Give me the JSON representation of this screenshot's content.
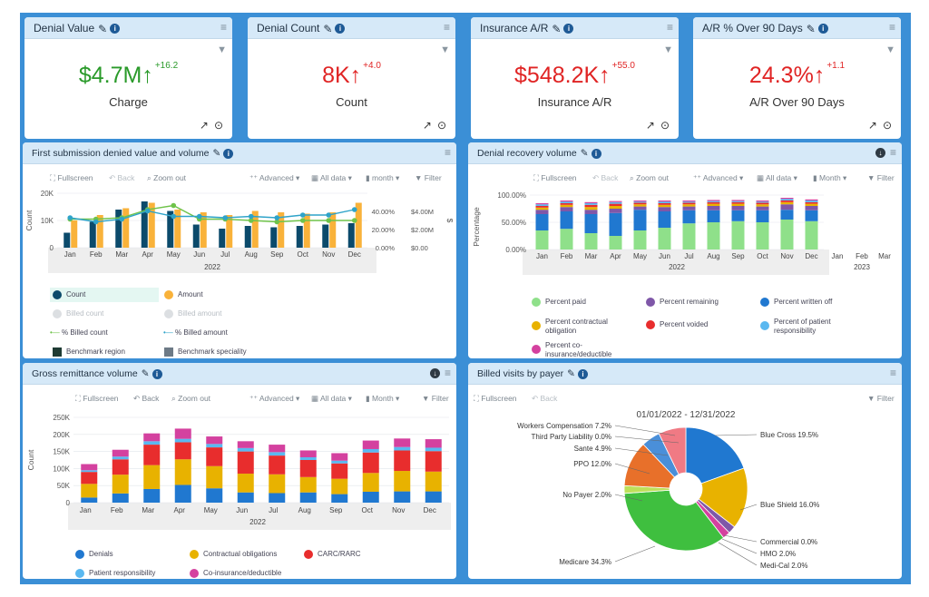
{
  "colors": {
    "panel_head": "#d6e9f8",
    "green": "#2a9a2a",
    "red": "#e02424",
    "navy": "#0b4a6b",
    "orange": "#f9b23a",
    "teal": "#2ea3c9",
    "lime": "#6fc34a"
  },
  "kpis": [
    {
      "title": "Denial Value",
      "value": "$4.7M",
      "arrow": "↑",
      "delta": "+16.2",
      "label": "Charge",
      "color": "#2a9a2a"
    },
    {
      "title": "Denial Count",
      "value": "8K",
      "arrow": "↑",
      "delta": "+4.0",
      "label": "Count",
      "color": "#e02424"
    },
    {
      "title": "Insurance A/R",
      "value": "$548.2K",
      "arrow": "↑",
      "delta": "+55.0",
      "label": "Insurance A/R",
      "color": "#e02424"
    },
    {
      "title": "A/R % Over 90 Days",
      "value": "24.3%",
      "arrow": "↑",
      "delta": "+1.1",
      "label": "A/R Over 90 Days",
      "color": "#e02424"
    }
  ],
  "toolbar": {
    "fullscreen": "Fullscreen",
    "back": "Back",
    "zoom_out": "Zoom out",
    "advanced": "Advanced",
    "all_data": "All data",
    "month_lower": "month",
    "month": "Month",
    "filter": "Filter"
  },
  "months": [
    "Jan",
    "Feb",
    "Mar",
    "Apr",
    "May",
    "Jun",
    "Jul",
    "Aug",
    "Sep",
    "Oct",
    "Nov",
    "Dec"
  ],
  "p1": {
    "title": "First submission denied value and volume",
    "year": "2022",
    "left_axis_title": "Count",
    "right_axis_title": "$",
    "left_ticks": [
      "20K",
      "10K",
      "0"
    ],
    "mid_ticks": [
      "40.00%",
      "20.00%",
      "0.00%"
    ],
    "right_ticks": [
      "$4.00M",
      "$2.00M",
      "$0.00"
    ],
    "legend": {
      "count": "Count",
      "amount": "Amount",
      "billed_count": "Billed count",
      "billed_amount": "Billed amount",
      "pct_billed_count": "% Billed count",
      "pct_billed_amount": "% Billed amount",
      "benchmark_region": "Benchmark region",
      "benchmark_speciality": "Benchmark speciality"
    }
  },
  "p2": {
    "title": "Denial recovery volume",
    "year": "2022",
    "year2": "2023",
    "axis_title": "Percentage",
    "ticks": [
      "100.00%",
      "50.00%",
      "0.00%"
    ],
    "legend": {
      "paid": "Percent paid",
      "remaining": "Percent remaining",
      "written_off": "Percent written off",
      "contractual": "Percent contractual obligation",
      "voided": "Percent voided",
      "patient": "Percent of patient responsibility",
      "coins": "Percent co-insurance/deductible"
    }
  },
  "p3": {
    "title": "Gross remittance volume",
    "year": "2022",
    "axis_title": "Count",
    "ticks": [
      "250K",
      "200K",
      "150K",
      "100K",
      "50K",
      "0"
    ],
    "legend": {
      "denials": "Denials",
      "contractual": "Contractual obligations",
      "carc": "CARC/RARC",
      "patient": "Patient responsibility",
      "coins": "Co-insurance/deductible"
    }
  },
  "p4": {
    "title": "Billed visits by payer",
    "date_range": "01/01/2022 - 12/31/2022",
    "labels": {
      "workers": "Workers Compensation 7.2%",
      "third": "Third Party Liability 0.0%",
      "sante": "Sante 4.9%",
      "ppo": "PPO 12.0%",
      "nopayer": "No Payer 2.0%",
      "medicare": "Medicare 34.3%",
      "bluecross": "Blue Cross 19.5%",
      "blueshield": "Blue Shield 16.0%",
      "commercial": "Commercial 0.0%",
      "hmo": "HMO 2.0%",
      "medical": "Medi-Cal 2.0%"
    }
  },
  "chart_data": [
    {
      "type": "bar",
      "title": "First submission denied value and volume",
      "xlabel": "2022",
      "ylabel": "Count",
      "categories": [
        "Jan",
        "Feb",
        "Mar",
        "Apr",
        "May",
        "Jun",
        "Jul",
        "Aug",
        "Sep",
        "Oct",
        "Nov",
        "Dec"
      ],
      "series": [
        {
          "name": "Count",
          "values": [
            5500,
            9500,
            14000,
            17000,
            13500,
            8500,
            7000,
            8000,
            7500,
            8000,
            8500,
            9000
          ]
        },
        {
          "name": "Amount",
          "values": [
            2.0,
            2.4,
            2.9,
            3.3,
            2.8,
            2.6,
            2.4,
            2.7,
            2.6,
            2.5,
            2.6,
            3.3
          ]
        },
        {
          "name": "% Billed count",
          "values": [
            21,
            21,
            22,
            28,
            31,
            21,
            21,
            20,
            19,
            20,
            20,
            20
          ]
        },
        {
          "name": "% Billed amount",
          "values": [
            22,
            19,
            21,
            27,
            23,
            23,
            22,
            23,
            22,
            24,
            24,
            28
          ]
        }
      ],
      "ylim": [
        0,
        20000
      ],
      "y2lim": [
        0,
        4.0
      ],
      "y3lim": [
        0,
        40
      ]
    },
    {
      "type": "bar",
      "title": "Denial recovery volume",
      "xlabel": "2022",
      "ylabel": "Percentage",
      "categories": [
        "Jan",
        "Feb",
        "Mar",
        "Apr",
        "May",
        "Jun",
        "Jul",
        "Aug",
        "Sep",
        "Oct",
        "Nov",
        "Dec"
      ],
      "series": [
        {
          "name": "Percent paid",
          "values": [
            35,
            38,
            30,
            25,
            35,
            40,
            48,
            50,
            52,
            50,
            55,
            52
          ]
        },
        {
          "name": "Percent written off",
          "values": [
            30,
            32,
            35,
            42,
            38,
            30,
            24,
            22,
            20,
            22,
            18,
            20
          ]
        },
        {
          "name": "Percent remaining",
          "values": [
            8,
            8,
            8,
            8,
            6,
            8,
            7,
            8,
            8,
            7,
            10,
            8
          ]
        },
        {
          "name": "Percent contractual obligation",
          "values": [
            4,
            4,
            5,
            5,
            4,
            4,
            4,
            4,
            4,
            4,
            4,
            4
          ]
        },
        {
          "name": "Percent voided",
          "values": [
            3,
            3,
            4,
            4,
            3,
            3,
            3,
            3,
            3,
            3,
            3,
            3
          ]
        },
        {
          "name": "Percent of patient responsibility",
          "values": [
            3,
            3,
            3,
            3,
            2,
            3,
            2,
            2,
            2,
            2,
            3,
            3
          ]
        },
        {
          "name": "Percent co-insurance/deductible",
          "values": [
            2,
            2,
            2,
            2,
            2,
            2,
            2,
            2,
            2,
            2,
            2,
            2
          ]
        }
      ],
      "ylim": [
        0,
        100
      ]
    },
    {
      "type": "bar",
      "title": "Gross remittance volume",
      "xlabel": "2022",
      "ylabel": "Count",
      "categories": [
        "Jan",
        "Feb",
        "Mar",
        "Apr",
        "May",
        "Jun",
        "Jul",
        "Aug",
        "Sep",
        "Oct",
        "Nov",
        "Dec"
      ],
      "series": [
        {
          "name": "Denials",
          "values": [
            15000,
            27000,
            40000,
            52000,
            42000,
            30000,
            28000,
            30000,
            25000,
            32000,
            33000,
            33000
          ]
        },
        {
          "name": "Contractual obligations",
          "values": [
            40000,
            55000,
            70000,
            75000,
            65000,
            55000,
            55000,
            45000,
            45000,
            55000,
            60000,
            58000
          ]
        },
        {
          "name": "CARC/RARC",
          "values": [
            35000,
            45000,
            60000,
            50000,
            55000,
            65000,
            55000,
            50000,
            45000,
            60000,
            60000,
            60000
          ]
        },
        {
          "name": "Patient responsibility",
          "values": [
            5000,
            8000,
            10000,
            10000,
            10000,
            10000,
            10000,
            8000,
            8000,
            10000,
            10000,
            10000
          ]
        },
        {
          "name": "Co-insurance/deductible",
          "values": [
            18000,
            20000,
            23000,
            30000,
            22000,
            20000,
            22000,
            20000,
            22000,
            25000,
            25000,
            25000
          ]
        }
      ],
      "ylim": [
        0,
        250000
      ]
    },
    {
      "type": "pie",
      "title": "Billed visits by payer",
      "slices": [
        {
          "label": "Blue Cross",
          "value": 19.5
        },
        {
          "label": "Blue Shield",
          "value": 16.0
        },
        {
          "label": "Commercial",
          "value": 0.0
        },
        {
          "label": "HMO",
          "value": 2.0
        },
        {
          "label": "Medi-Cal",
          "value": 2.0
        },
        {
          "label": "Medicare",
          "value": 34.3
        },
        {
          "label": "No Payer",
          "value": 2.0
        },
        {
          "label": "PPO",
          "value": 12.0
        },
        {
          "label": "Sante",
          "value": 4.9
        },
        {
          "label": "Third Party Liability",
          "value": 0.0
        },
        {
          "label": "Workers Compensation",
          "value": 7.2
        }
      ]
    }
  ]
}
